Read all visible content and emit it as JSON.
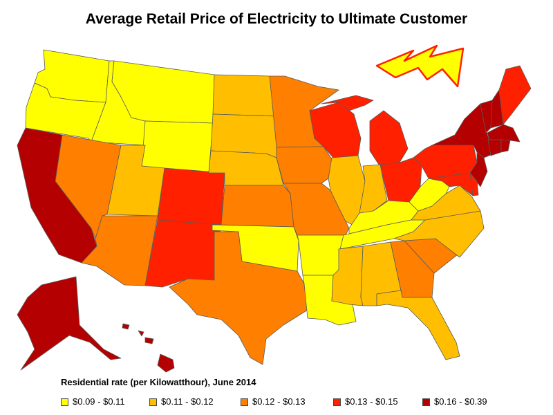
{
  "title": "Average Retail Price of Electricity to Ultimate Customer",
  "legend": {
    "title": "Residential rate (per Kilowatthour), June 2014",
    "items": [
      {
        "label": "$0.09 - $0.11",
        "color": "#ffff00"
      },
      {
        "label": "$0.11 - $0.12",
        "color": "#ffbf00"
      },
      {
        "label": "$0.12 - $0.13",
        "color": "#ff7f00"
      },
      {
        "label": "$0.13 - $0.15",
        "color": "#ff2000"
      },
      {
        "label": "$0.16 - $0.39",
        "color": "#b40000"
      }
    ]
  },
  "icon": "lightning-bolt-icon",
  "state_categories": {
    "WA": 0,
    "OR": 0,
    "ID": 0,
    "MT": 0,
    "WY": 0,
    "OK": 0,
    "AR": 0,
    "LA": 0,
    "KY": 0,
    "WV": 0,
    "TN": 0,
    "ND": 1,
    "SD": 1,
    "NE": 1,
    "UT": 1,
    "IL": 1,
    "IN": 1,
    "MS": 1,
    "AL": 1,
    "VA": 1,
    "NC": 1,
    "FL": 1,
    "MN": 2,
    "IA": 2,
    "KS": 2,
    "MO": 2,
    "NV": 2,
    "AZ": 2,
    "TX": 2,
    "GA": 2,
    "SC": 2,
    "CO": 3,
    "NM": 3,
    "WI": 3,
    "MI": 3,
    "OH": 3,
    "PA": 3,
    "MD": 3,
    "DE": 3,
    "ME": 3,
    "DC": 3,
    "CA": 4,
    "AK": 4,
    "HI": 4,
    "NY": 4,
    "NJ": 4,
    "VT": 4,
    "NH": 4,
    "MA": 4,
    "CT": 4,
    "RI": 4
  }
}
